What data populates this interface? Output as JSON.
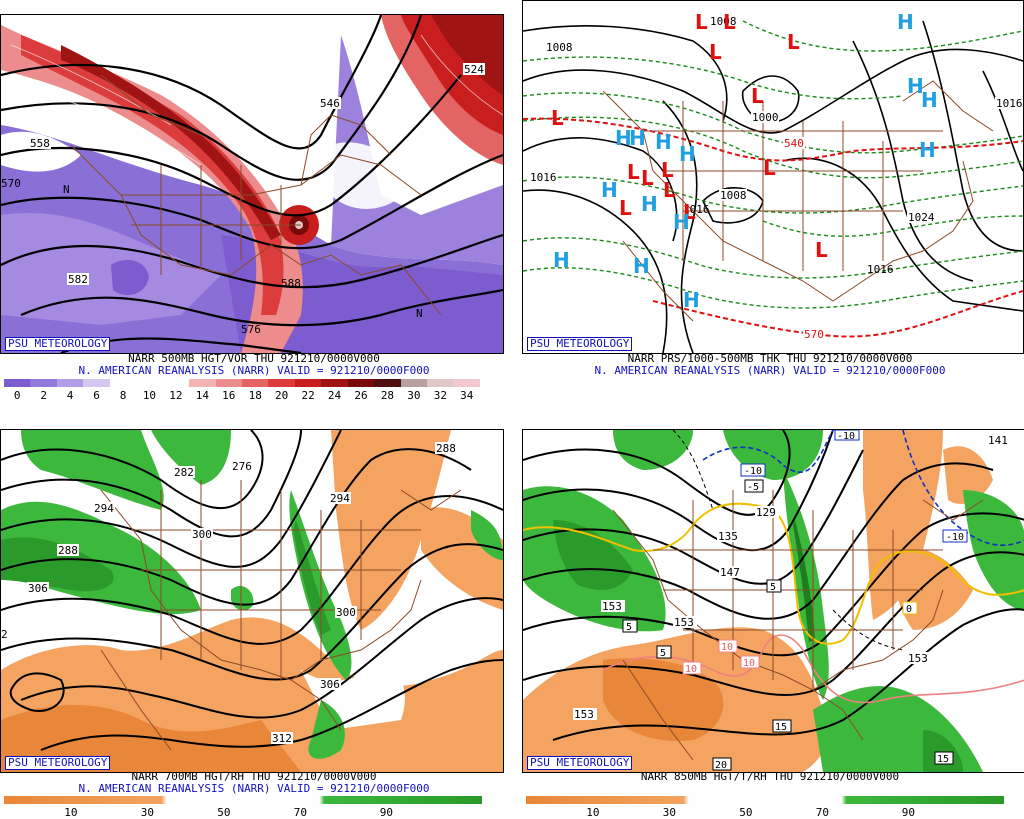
{
  "panels": [
    {
      "id": "p1",
      "logo": "PSU METEOROLOGY",
      "caption_line1": "NARR 500MB HGT/VOR THU 921210/0000V000",
      "caption_line2": "N. AMERICAN REANALYSIS (NARR) VALID = 921210/0000F000",
      "colorbar_labels": [
        "0",
        "2",
        "4",
        "6",
        "8",
        "10",
        "12",
        "14",
        "16",
        "18",
        "20",
        "22",
        "24",
        "26",
        "28",
        "30",
        "32",
        "34"
      ],
      "colorbar_colors": [
        "#7c5ccf",
        "#9478db",
        "#b49ce6",
        "#d4c8f0",
        "#ffffff",
        "#ffffff",
        "#ffffff",
        "#f4b4b4",
        "#ec8c8c",
        "#e46464",
        "#dc3c3c",
        "#c81e1e",
        "#a01414",
        "#7a0a0a",
        "#501010",
        "#b8a0a0",
        "#e0c8c8",
        "#f4c8d0"
      ],
      "contour_labels": [
        "546",
        "582",
        "524",
        "558",
        "570",
        "588",
        "576"
      ],
      "vort_label": "N"
    },
    {
      "id": "p2",
      "logo": "PSU METEOROLOGY",
      "caption_line1": "NARR PRS/1000-500MB THK THU 921210/0000V000",
      "caption_line2": "N. AMERICAN REANALYSIS (NARR) VALID = 921210/0000F000",
      "isobar_labels": [
        "1008",
        "1008",
        "1000",
        "1016",
        "1016",
        "1008",
        "1024",
        "1016",
        "1016"
      ],
      "thickness_labels": [
        "540",
        "570"
      ],
      "high_symbol": "H",
      "low_symbol": "L"
    },
    {
      "id": "p3",
      "logo": "PSU METEOROLOGY",
      "caption_line1": "NARR 700MB HGT/RH THU 921210/0000V000",
      "caption_line2": "N. AMERICAN REANALYSIS (NARR) VALID = 921210/0000F000",
      "colorbar_labels": [
        "10",
        "30",
        "50",
        "70",
        "90"
      ],
      "contour_labels": [
        "288",
        "282",
        "276",
        "294",
        "294",
        "288",
        "300",
        "306",
        "300",
        "306",
        "312",
        "2"
      ]
    },
    {
      "id": "p4",
      "logo": "PSU METEOROLOGY",
      "caption_line1": "NARR 850MB HGT/T/RH THU 921210/0000V000",
      "colorbar_labels": [
        "10",
        "30",
        "50",
        "70",
        "90"
      ],
      "contour_labels": [
        "141",
        "129",
        "135",
        "147",
        "153",
        "153",
        "153",
        "153"
      ],
      "temp_labels": [
        "-10",
        "-5",
        "-10",
        "0",
        "5",
        "5",
        "5",
        "10",
        "10",
        "10",
        "15",
        "15",
        "20",
        "-10"
      ]
    }
  ]
}
